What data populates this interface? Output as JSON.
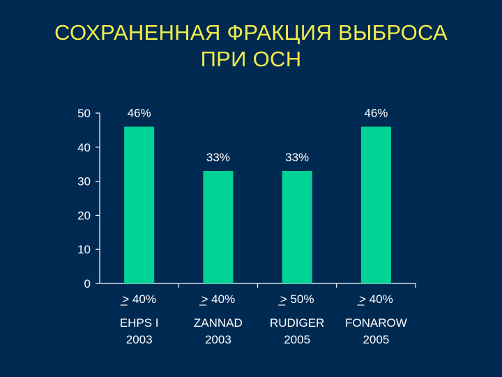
{
  "title_line1": "СОХРАНЕННАЯ ФРАКЦИЯ ВЫБРОСА",
  "title_line2": "ПРИ ОСН",
  "chart_data": {
    "type": "bar",
    "title": "СОХРАНЕННАЯ ФРАКЦИЯ ВЫБРОСА ПРИ ОСН",
    "categories": [
      {
        "threshold": "> 40%",
        "study": "EHPS I",
        "year": "2003"
      },
      {
        "threshold": "> 40%",
        "study": "ZANNAD",
        "year": "2003"
      },
      {
        "threshold": "> 50%",
        "study": "RUDIGER",
        "year": "2005"
      },
      {
        "threshold": "> 40%",
        "study": "FONAROW",
        "year": "2005"
      }
    ],
    "values": [
      46,
      33,
      33,
      46
    ],
    "data_labels": [
      "46%",
      "33%",
      "33%",
      "46%"
    ],
    "yticks": [
      0,
      10,
      20,
      30,
      40,
      50
    ],
    "ylim": [
      0,
      50
    ],
    "grid": false,
    "legend": "none",
    "bar_color": "#00d394"
  }
}
